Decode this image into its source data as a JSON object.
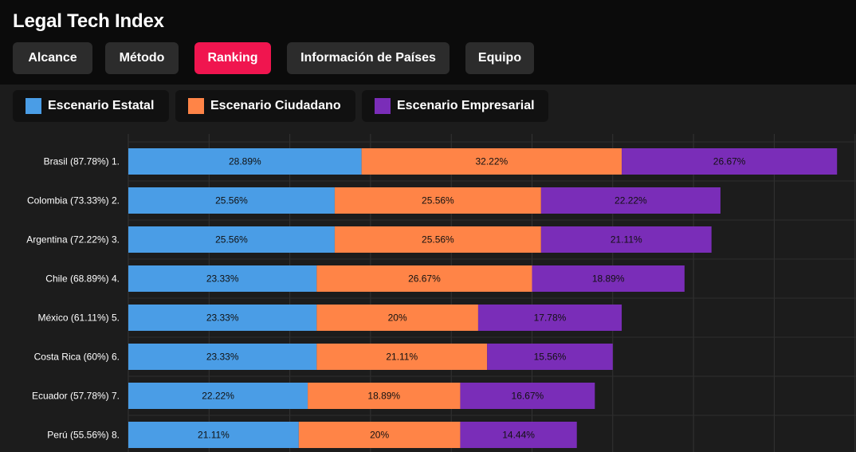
{
  "header": {
    "title": "Legal Tech Index",
    "nav": [
      {
        "label": "Alcance",
        "active": false
      },
      {
        "label": "Método",
        "active": false
      },
      {
        "label": "Ranking",
        "active": true
      },
      {
        "label": "Información de Países",
        "active": false
      },
      {
        "label": "Equipo",
        "active": false
      }
    ]
  },
  "legend": [
    {
      "label": "Escenario Estatal",
      "color": "#4a9de6"
    },
    {
      "label": "Escenario Ciudadano",
      "color": "#ff8447"
    },
    {
      "label": "Escenario Empresarial",
      "color": "#7a2db8"
    }
  ],
  "chart_data": {
    "type": "bar",
    "orientation": "horizontal",
    "stacked": true,
    "categories": [
      "Brasil (87.78%) 1.",
      "Colombia (73.33%) 2.",
      "Argentina (72.22%) 3.",
      "Chile (68.89%) 4.",
      "México (61.11%) 5.",
      "Costa Rica (60%) 6.",
      "Ecuador (57.78%) 7.",
      "Perú (55.56%) 8."
    ],
    "series": [
      {
        "name": "Escenario Estatal",
        "color": "#4a9de6",
        "values": [
          28.89,
          25.56,
          25.56,
          23.33,
          23.33,
          23.33,
          22.22,
          21.11
        ],
        "labels": [
          "28.89%",
          "25.56%",
          "25.56%",
          "23.33%",
          "23.33%",
          "23.33%",
          "22.22%",
          "21.11%"
        ]
      },
      {
        "name": "Escenario Ciudadano",
        "color": "#ff8447",
        "values": [
          32.22,
          25.56,
          25.56,
          26.67,
          20,
          21.11,
          18.89,
          20
        ],
        "labels": [
          "32.22%",
          "25.56%",
          "25.56%",
          "26.67%",
          "20%",
          "21.11%",
          "18.89%",
          "20%"
        ]
      },
      {
        "name": "Escenario Empresarial",
        "color": "#7a2db8",
        "values": [
          26.67,
          22.22,
          21.11,
          18.89,
          17.78,
          15.56,
          16.67,
          14.44
        ],
        "labels": [
          "26.67%",
          "22.22%",
          "21.11%",
          "18.89%",
          "17.78%",
          "15.56%",
          "16.67%",
          "14.44%"
        ]
      }
    ],
    "xlim": [
      0,
      90
    ],
    "grid": true,
    "legend_position": "top-left"
  }
}
